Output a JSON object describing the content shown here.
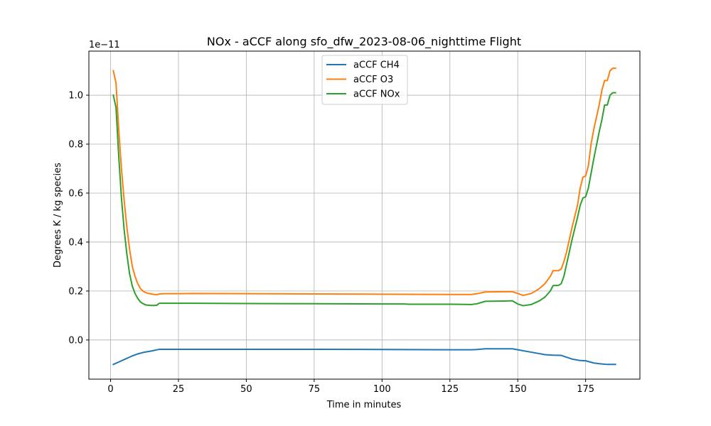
{
  "chart_data": {
    "type": "line",
    "title": "NOx - aCCF along sfo_dfw_2023-08-06_nighttime Flight",
    "xlabel": "Time in minutes",
    "ylabel": "Degrees K / kg species",
    "offset_text": "1e−11",
    "xlim": [
      -8,
      195
    ],
    "ylim": [
      -0.16,
      1.18
    ],
    "y_scale_factor": 1e-11,
    "x_ticks": [
      0,
      25,
      50,
      75,
      100,
      125,
      150,
      175
    ],
    "x_tick_labels": [
      "0",
      "25",
      "50",
      "75",
      "100",
      "125",
      "150",
      "175"
    ],
    "y_ticks": [
      0.0,
      0.2,
      0.4,
      0.6,
      0.8,
      1.0
    ],
    "y_tick_labels": [
      "0.0",
      "0.2",
      "0.4",
      "0.6",
      "0.8",
      "1.0"
    ],
    "grid": true,
    "legend_position": "top-center",
    "series": [
      {
        "name": "aCCF CH4",
        "color": "#1f77b4",
        "x": [
          1,
          3,
          5,
          8,
          10,
          12,
          15,
          18,
          20,
          30,
          50,
          75,
          100,
          125,
          133,
          135,
          138,
          145,
          148,
          150,
          155,
          160,
          163,
          166,
          170,
          173,
          175,
          178,
          180,
          183,
          186
        ],
        "y": [
          -0.1,
          -0.09,
          -0.08,
          -0.065,
          -0.057,
          -0.051,
          -0.045,
          -0.038,
          -0.038,
          -0.038,
          -0.038,
          -0.038,
          -0.039,
          -0.04,
          -0.04,
          -0.039,
          -0.036,
          -0.036,
          -0.036,
          -0.04,
          -0.05,
          -0.06,
          -0.062,
          -0.063,
          -0.078,
          -0.084,
          -0.085,
          -0.094,
          -0.097,
          -0.1,
          -0.1
        ]
      },
      {
        "name": "aCCF O3",
        "color": "#ff7f0e",
        "x": [
          1,
          2,
          3,
          4,
          5,
          6,
          7,
          8,
          9,
          10,
          11,
          12,
          13,
          14,
          15,
          16,
          17,
          18,
          20,
          25,
          30,
          50,
          75,
          100,
          125,
          133,
          135,
          138,
          145,
          148,
          150,
          152,
          155,
          158,
          160,
          162,
          163,
          165,
          166,
          167,
          168,
          170,
          172,
          173,
          174,
          175,
          176,
          177,
          178,
          180,
          181,
          182,
          183,
          184,
          185,
          186
        ],
        "y": [
          1.1,
          1.05,
          0.86,
          0.7,
          0.57,
          0.46,
          0.37,
          0.3,
          0.26,
          0.23,
          0.21,
          0.199,
          0.193,
          0.19,
          0.188,
          0.186,
          0.185,
          0.188,
          0.189,
          0.189,
          0.19,
          0.189,
          0.188,
          0.187,
          0.186,
          0.186,
          0.189,
          0.196,
          0.197,
          0.197,
          0.19,
          0.182,
          0.19,
          0.21,
          0.23,
          0.26,
          0.283,
          0.283,
          0.29,
          0.32,
          0.36,
          0.46,
          0.55,
          0.62,
          0.665,
          0.67,
          0.71,
          0.8,
          0.86,
          0.96,
          1.02,
          1.06,
          1.06,
          1.1,
          1.11,
          1.11
        ]
      },
      {
        "name": "aCCF NOx",
        "color": "#2ca02c",
        "x": [
          1,
          2,
          3,
          4,
          5,
          6,
          7,
          8,
          9,
          10,
          11,
          12,
          13,
          14,
          15,
          16,
          17,
          18,
          20,
          25,
          30,
          50,
          75,
          100,
          108,
          110,
          125,
          133,
          135,
          138,
          145,
          148,
          150,
          152,
          155,
          158,
          160,
          162,
          163,
          165,
          166,
          167,
          168,
          170,
          172,
          173,
          174,
          175,
          176,
          177,
          178,
          180,
          181,
          182,
          183,
          184,
          185,
          186
        ],
        "y": [
          1.0,
          0.95,
          0.75,
          0.58,
          0.45,
          0.35,
          0.27,
          0.22,
          0.19,
          0.17,
          0.155,
          0.148,
          0.143,
          0.142,
          0.141,
          0.141,
          0.142,
          0.15,
          0.15,
          0.15,
          0.15,
          0.149,
          0.148,
          0.147,
          0.147,
          0.146,
          0.146,
          0.145,
          0.148,
          0.158,
          0.159,
          0.16,
          0.147,
          0.14,
          0.145,
          0.16,
          0.175,
          0.2,
          0.222,
          0.223,
          0.23,
          0.26,
          0.31,
          0.41,
          0.5,
          0.55,
          0.58,
          0.585,
          0.62,
          0.68,
          0.74,
          0.85,
          0.9,
          0.96,
          0.96,
          1.0,
          1.01,
          1.01
        ]
      }
    ]
  }
}
